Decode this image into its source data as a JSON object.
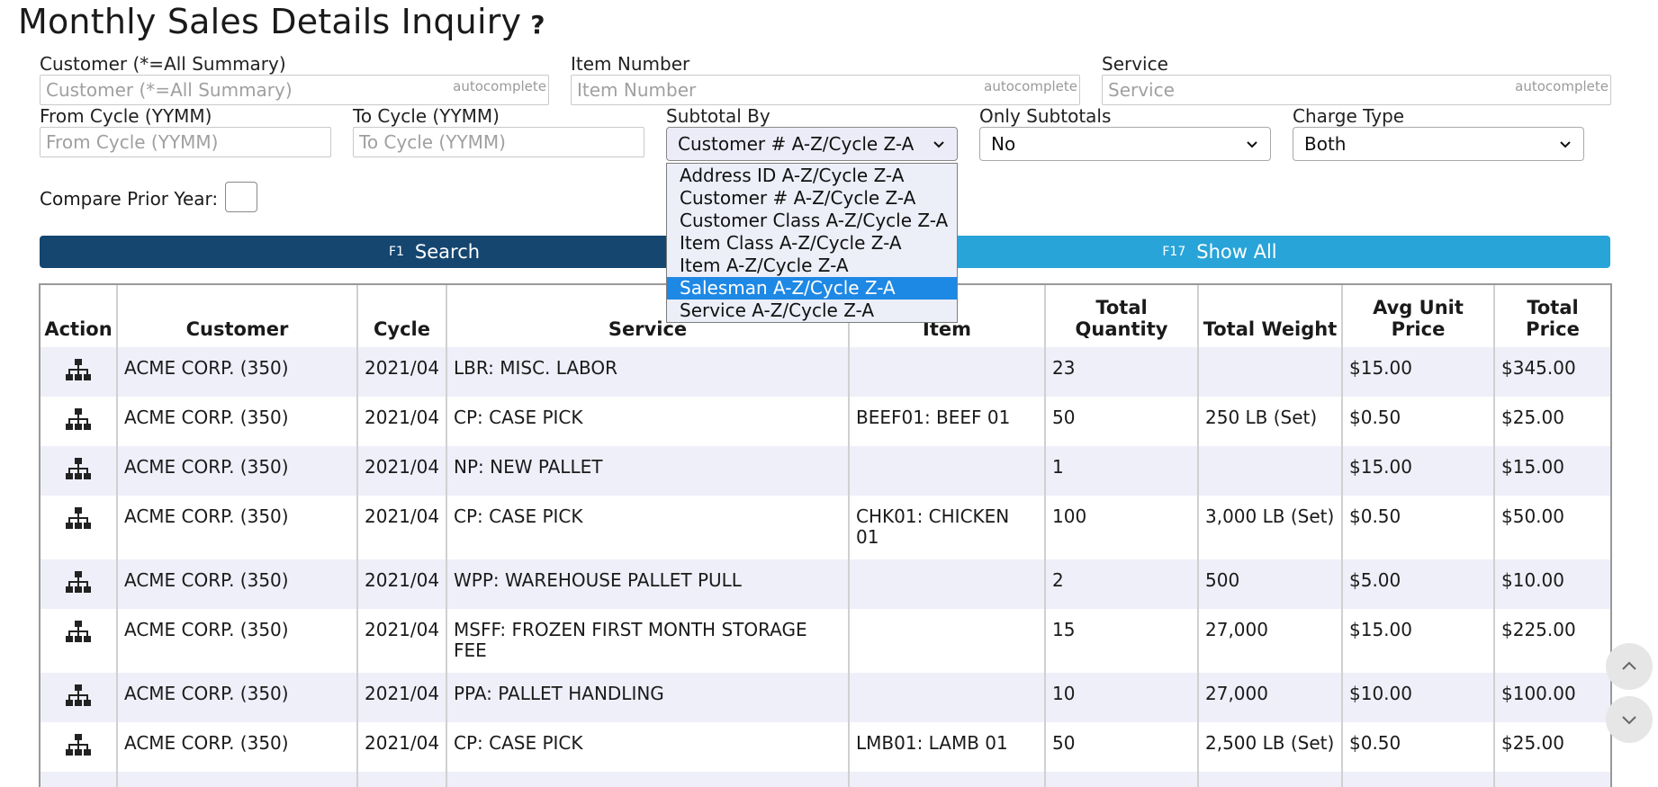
{
  "page": {
    "title": "Monthly Sales Details Inquiry",
    "help": "?"
  },
  "filters": {
    "customer": {
      "label": "Customer (*=All Summary)",
      "placeholder": "Customer (*=All Summary)",
      "tag": "autocomplete"
    },
    "item_number": {
      "label": "Item Number",
      "placeholder": "Item Number",
      "tag": "autocomplete"
    },
    "service": {
      "label": "Service",
      "placeholder": "Service",
      "tag": "autocomplete"
    },
    "from_cycle": {
      "label": "From Cycle (YYMM)",
      "placeholder": "From Cycle (YYMM)"
    },
    "to_cycle": {
      "label": "To Cycle (YYMM)",
      "placeholder": "To Cycle (YYMM)"
    },
    "subtotal_by": {
      "label": "Subtotal By",
      "value": "Customer # A-Z/Cycle Z-A",
      "options": [
        "Address ID A-Z/Cycle Z-A",
        "Customer # A-Z/Cycle Z-A",
        "Customer Class A-Z/Cycle Z-A",
        "Item Class A-Z/Cycle Z-A",
        "Item A-Z/Cycle Z-A",
        "Salesman A-Z/Cycle Z-A",
        "Service A-Z/Cycle Z-A"
      ],
      "highlighted": "Salesman A-Z/Cycle Z-A"
    },
    "only_subtotals": {
      "label": "Only Subtotals",
      "value": "No"
    },
    "charge_type": {
      "label": "Charge Type",
      "value": "Both"
    },
    "compare_prior_year": {
      "label": "Compare Prior Year:"
    }
  },
  "buttons": {
    "search": {
      "key": "F1",
      "label": "Search"
    },
    "show_all": {
      "key": "F17",
      "label": "Show All"
    }
  },
  "table": {
    "headers": {
      "action": "Action",
      "customer": "Customer",
      "cycle": "Cycle",
      "service": "Service",
      "item": "Item",
      "total_quantity": "Total Quantity",
      "total_weight": "Total Weight",
      "avg_unit_price": "Avg Unit Price",
      "total_price": "Total Price"
    },
    "rows": [
      {
        "customer": "ACME CORP. (350)",
        "cycle": "2021/04",
        "service": "LBR: MISC. LABOR",
        "item": "",
        "qty": "23",
        "weight": "",
        "avg": "$15.00",
        "total": "$345.00"
      },
      {
        "customer": "ACME CORP. (350)",
        "cycle": "2021/04",
        "service": "CP: CASE PICK",
        "item": "BEEF01: BEEF 01",
        "qty": "50",
        "weight": "250 LB (Set)",
        "avg": "$0.50",
        "total": "$25.00"
      },
      {
        "customer": "ACME CORP. (350)",
        "cycle": "2021/04",
        "service": "NP: NEW PALLET",
        "item": "",
        "qty": "1",
        "weight": "",
        "avg": "$15.00",
        "total": "$15.00"
      },
      {
        "customer": "ACME CORP. (350)",
        "cycle": "2021/04",
        "service": "CP: CASE PICK",
        "item": "CHK01: CHICKEN 01",
        "qty": "100",
        "weight": "3,000 LB (Set)",
        "avg": "$0.50",
        "total": "$50.00"
      },
      {
        "customer": "ACME CORP. (350)",
        "cycle": "2021/04",
        "service": "WPP: WAREHOUSE PALLET PULL",
        "item": "",
        "qty": "2",
        "weight": "500",
        "avg": "$5.00",
        "total": "$10.00"
      },
      {
        "customer": "ACME CORP. (350)",
        "cycle": "2021/04",
        "service": "MSFF: FROZEN FIRST MONTH STORAGE FEE",
        "item": "",
        "qty": "15",
        "weight": "27,000",
        "avg": "$15.00",
        "total": "$225.00"
      },
      {
        "customer": "ACME CORP. (350)",
        "cycle": "2021/04",
        "service": "PPA: PALLET HANDLING",
        "item": "",
        "qty": "10",
        "weight": "27,000",
        "avg": "$10.00",
        "total": "$100.00"
      },
      {
        "customer": "ACME CORP. (350)",
        "cycle": "2021/04",
        "service": "CP: CASE PICK",
        "item": "LMB01: LAMB 01",
        "qty": "50",
        "weight": "2,500 LB (Set)",
        "avg": "$0.50",
        "total": "$25.00"
      },
      {
        "customer": "",
        "cycle": "",
        "service": "",
        "item": "",
        "qty": "",
        "weight": "",
        "avg": "",
        "total": ""
      }
    ]
  },
  "icons": {
    "action": "hierarchy-icon",
    "scroll_up": "chevron-up-icon",
    "scroll_down": "chevron-down-icon"
  }
}
